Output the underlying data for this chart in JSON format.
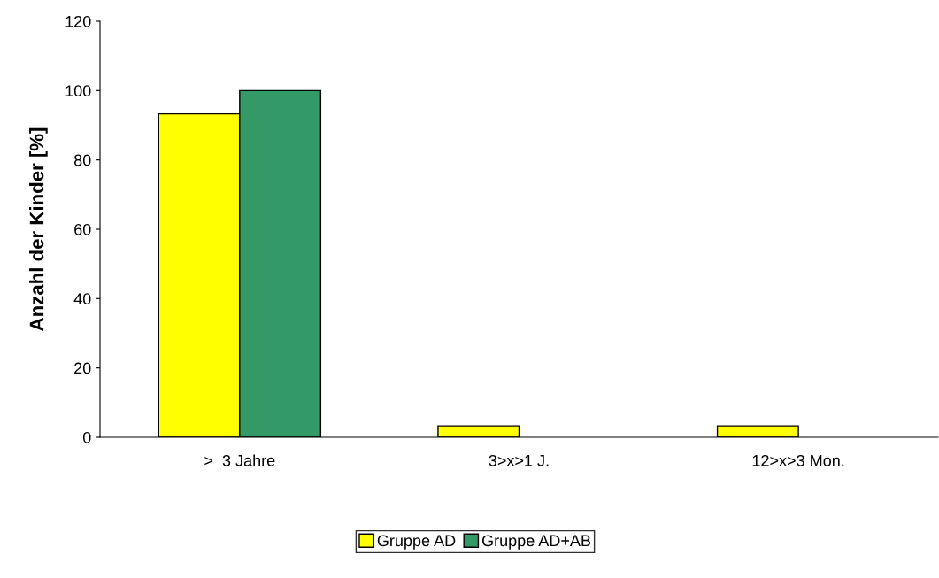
{
  "chart_data": {
    "type": "bar",
    "ylabel": "Anzahl der Kinder [%]",
    "categories": [
      ">  3 Jahre",
      "3>x>1 J.",
      "12>x>3 Mon."
    ],
    "series": [
      {
        "name": "Gruppe AD",
        "color": "#ffff00",
        "values": [
          93.3,
          3.3,
          3.3
        ]
      },
      {
        "name": "Gruppe AD+AB",
        "color": "#339966",
        "values": [
          100,
          null,
          null
        ]
      }
    ],
    "ylim": [
      0,
      120
    ],
    "yticks": [
      0,
      20,
      40,
      60,
      80,
      100,
      120
    ],
    "grid": false,
    "legend": "bottom"
  }
}
